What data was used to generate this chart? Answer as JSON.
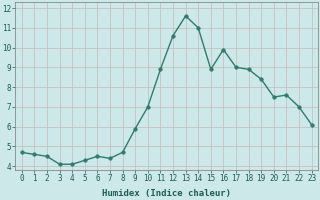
{
  "x": [
    0,
    1,
    2,
    3,
    4,
    5,
    6,
    7,
    8,
    9,
    10,
    11,
    12,
    13,
    14,
    15,
    16,
    17,
    18,
    19,
    20,
    21,
    22,
    23
  ],
  "y": [
    4.7,
    4.6,
    4.5,
    4.1,
    4.1,
    4.3,
    4.5,
    4.4,
    4.7,
    5.9,
    7.0,
    8.9,
    10.6,
    11.6,
    11.0,
    8.9,
    9.9,
    9.0,
    8.9,
    8.4,
    7.5,
    7.6,
    7.0,
    6.1
  ],
  "line_color": "#2d7d6e",
  "marker": "o",
  "markersize": 2.5,
  "linewidth": 1.0,
  "bg_color": "#cce8e8",
  "grid_color": "#c8b8b8",
  "xlabel": "Humidex (Indice chaleur)",
  "xlim": [
    -0.5,
    23.5
  ],
  "ylim": [
    3.8,
    12.3
  ],
  "yticks": [
    4,
    5,
    6,
    7,
    8,
    9,
    10,
    11,
    12
  ],
  "xticks": [
    0,
    1,
    2,
    3,
    4,
    5,
    6,
    7,
    8,
    9,
    10,
    11,
    12,
    13,
    14,
    15,
    16,
    17,
    18,
    19,
    20,
    21,
    22,
    23
  ],
  "tick_fontsize": 5.5,
  "xlabel_fontsize": 6.5,
  "tick_color": "#1a5f57",
  "spine_color": "#888888"
}
